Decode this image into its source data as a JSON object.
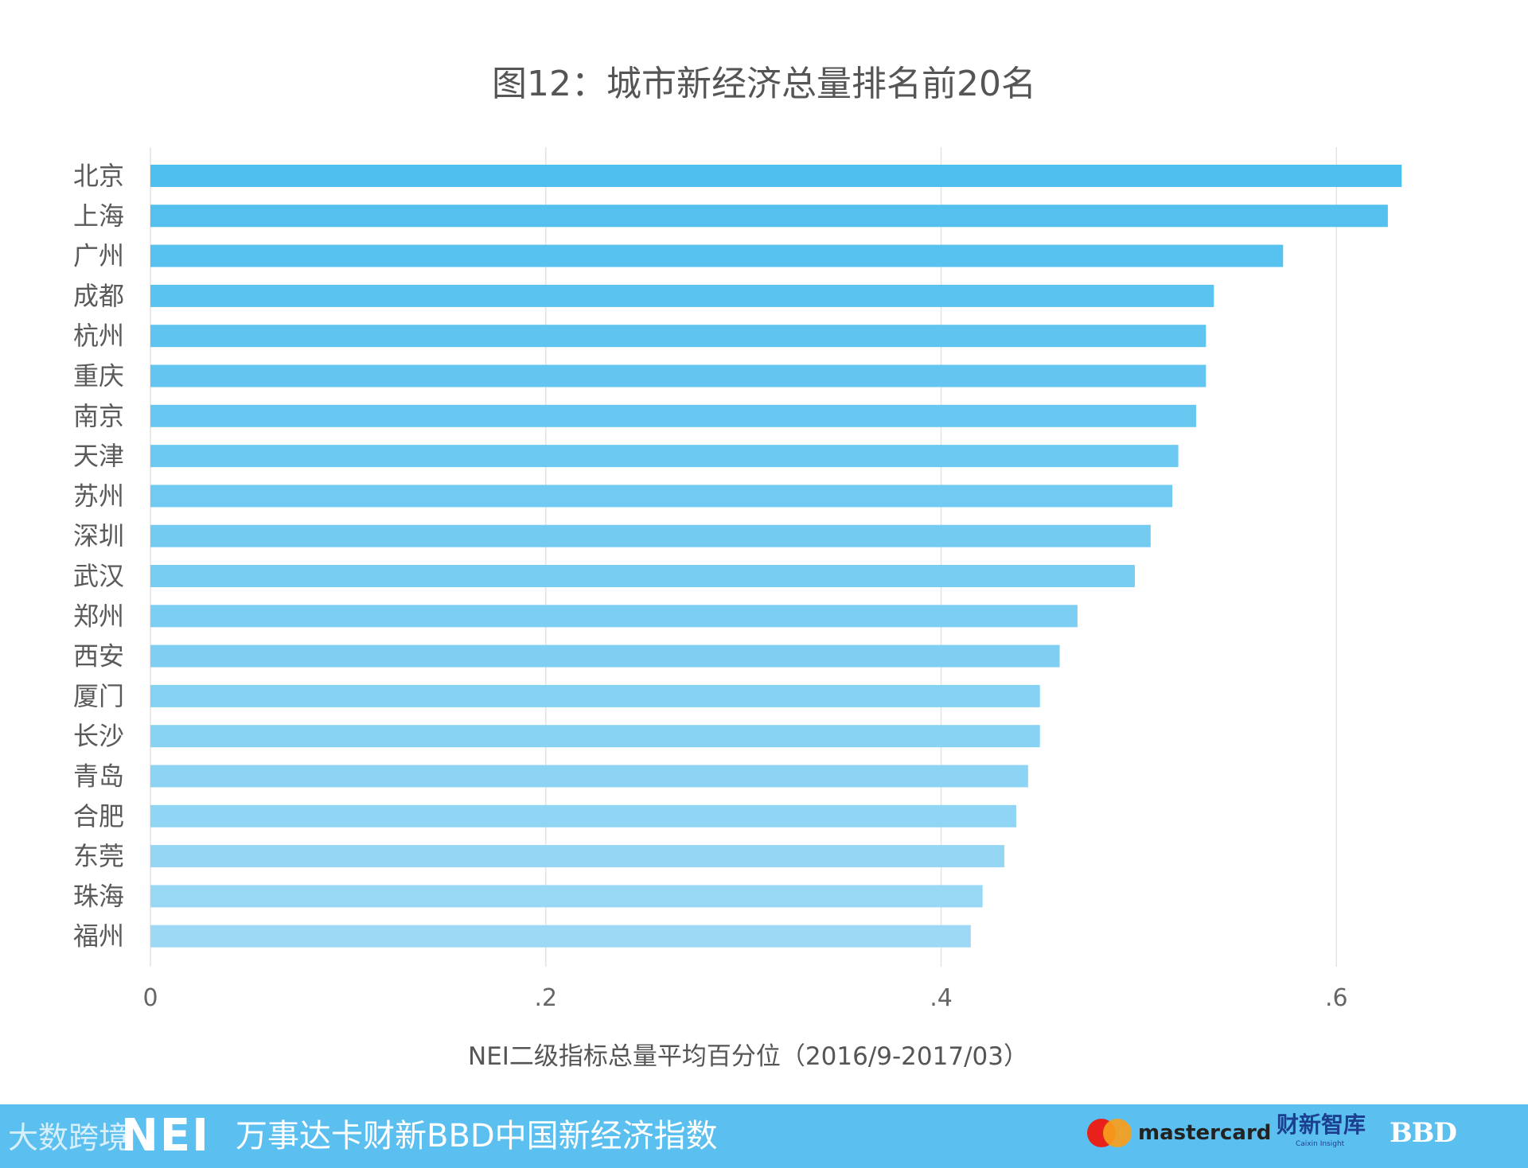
{
  "chart_data": {
    "type": "bar",
    "orientation": "horizontal",
    "title": "图12：城市新经济总量排名前20名",
    "xlabel": "NEI二级指标总量平均百分位（2016/9-2017/03）",
    "ylabel": "",
    "xlim": [
      0,
      0.65
    ],
    "xticks": [
      0,
      0.2,
      0.4,
      0.6
    ],
    "xtick_labels": [
      "0",
      ".2",
      ".4",
      ".6"
    ],
    "grid": true,
    "categories": [
      "北京",
      "上海",
      "广州",
      "成都",
      "杭州",
      "重庆",
      "南京",
      "天津",
      "苏州",
      "深圳",
      "武汉",
      "郑州",
      "西安",
      "厦门",
      "长沙",
      "青岛",
      "合肥",
      "东莞",
      "珠海",
      "福州"
    ],
    "values": [
      0.633,
      0.626,
      0.573,
      0.538,
      0.534,
      0.534,
      0.529,
      0.52,
      0.517,
      0.506,
      0.498,
      0.469,
      0.46,
      0.45,
      0.45,
      0.444,
      0.438,
      0.432,
      0.421,
      0.415
    ],
    "bar_color_top": "#4fbfee",
    "bar_color_bottom": "#9dd9f5"
  },
  "footer": {
    "watermark": "大数跨境",
    "nei_logo": "NEI",
    "title": "万事达卡财新BBD中国新经济指数",
    "mastercard": "mastercard",
    "caixin_zh": "财新智库",
    "caixin_en": "Caixin Insight",
    "bbd": "BBD"
  },
  "colors": {
    "footer_bg": "#5bc0ef",
    "grid": "#e3e3e3"
  }
}
